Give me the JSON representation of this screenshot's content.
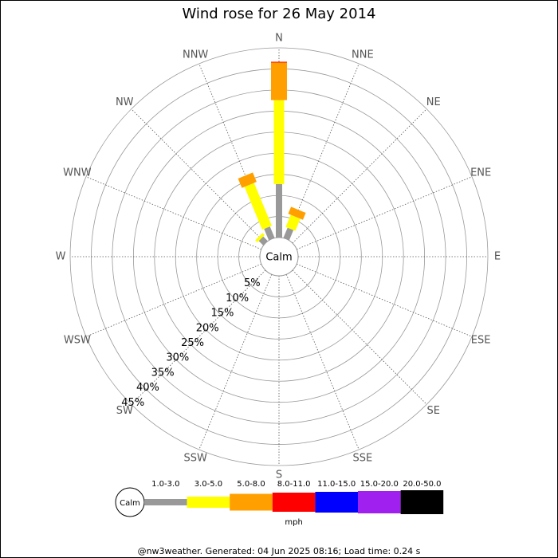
{
  "chart_data": {
    "type": "windrose",
    "title": "Wind rose for 26 May 2014",
    "directions": [
      "N",
      "NNE",
      "NE",
      "ENE",
      "E",
      "ESE",
      "SE",
      "SSE",
      "S",
      "SSW",
      "SW",
      "WSW",
      "W",
      "WNW",
      "NW",
      "NNW"
    ],
    "calm_label": "Calm",
    "rlim": [
      0,
      45
    ],
    "rticks": [
      {
        "value": 5,
        "label": "5%"
      },
      {
        "value": 10,
        "label": "10%"
      },
      {
        "value": 15,
        "label": "15%"
      },
      {
        "value": 20,
        "label": "20%"
      },
      {
        "value": 25,
        "label": "25%"
      },
      {
        "value": 30,
        "label": "30%"
      },
      {
        "value": 35,
        "label": "35%"
      },
      {
        "value": 40,
        "label": "40%"
      },
      {
        "value": 45,
        "label": "45%"
      }
    ],
    "grid": true,
    "series": [
      {
        "name": "1.0-3.0",
        "color": "#999999",
        "values": [
          12.7,
          2.6,
          0,
          0,
          0,
          0,
          0,
          0,
          0,
          0,
          0,
          0,
          0,
          0,
          1.5,
          2.9
        ]
      },
      {
        "name": "3.0-5.0",
        "color": "#ffff00",
        "values": [
          19.9,
          3.1,
          0,
          0,
          0,
          0,
          0,
          0,
          0,
          0,
          0,
          0,
          0,
          0,
          0.7,
          11.0
        ]
      },
      {
        "name": "5.0-8.0",
        "color": "#ffa000",
        "values": [
          8.9,
          1.8,
          0,
          0,
          0,
          0,
          0,
          0,
          0,
          0,
          0,
          0,
          0,
          0,
          0,
          2.4
        ]
      },
      {
        "name": "8.0-11.0",
        "color": "#ff0000",
        "values": [
          0.2,
          0,
          0,
          0,
          0,
          0,
          0,
          0,
          0,
          0,
          0,
          0,
          0,
          0,
          0,
          0
        ]
      },
      {
        "name": "11.0-15.0",
        "color": "#0000ff",
        "values": [
          0,
          0,
          0,
          0,
          0,
          0,
          0,
          0,
          0,
          0,
          0,
          0,
          0,
          0,
          0,
          0
        ]
      },
      {
        "name": "15.0-20.0",
        "color": "#a020f0",
        "values": [
          0,
          0,
          0,
          0,
          0,
          0,
          0,
          0,
          0,
          0,
          0,
          0,
          0,
          0,
          0,
          0
        ]
      },
      {
        "name": "20.0-50.0",
        "color": "#000000",
        "values": [
          0,
          0,
          0,
          0,
          0,
          0,
          0,
          0,
          0,
          0,
          0,
          0,
          0,
          0,
          0,
          0
        ]
      }
    ],
    "legend_unit": "mph"
  },
  "footer": "@nw3weather. Generated: 04 Jun 2025 08:16; Load time: 0.24 s"
}
